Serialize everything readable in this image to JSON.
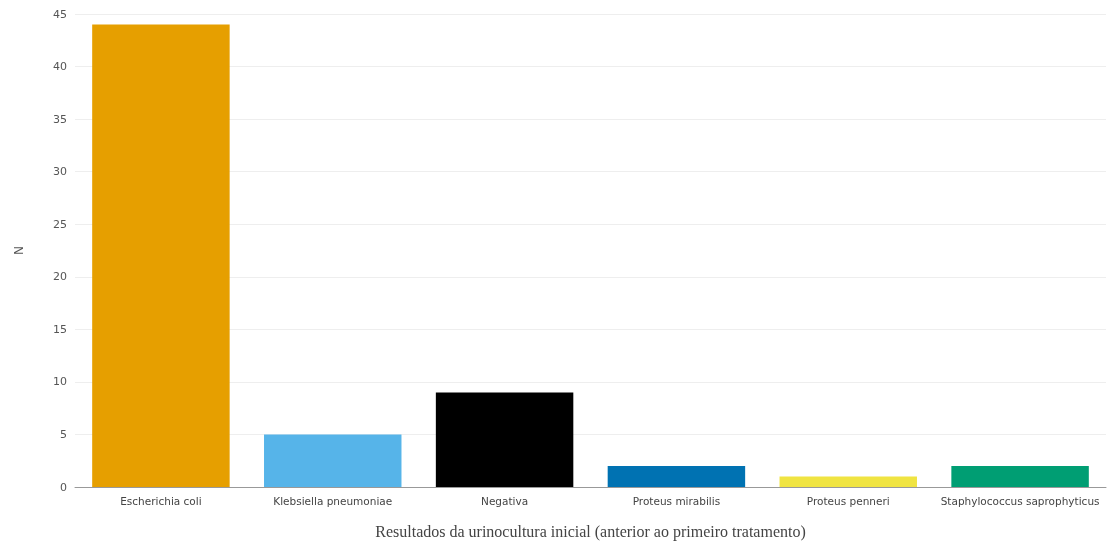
{
  "chart_data": {
    "type": "bar",
    "xlabel": "Resultados da urinocultura inicial (anterior ao primeiro tratamento)",
    "ylabel": "N",
    "categories": [
      "Escherichia coli",
      "Klebsiella pneumoniae",
      "Negativa",
      "Proteus mirabilis",
      "Proteus penneri",
      "Staphylococcus saprophyticus"
    ],
    "values": [
      44,
      5,
      9,
      2,
      1,
      2
    ],
    "colors": [
      "#e69f00",
      "#56b4e9",
      "#000000",
      "#0072b2",
      "#f0e442",
      "#009e73"
    ],
    "ylim": [
      0,
      45
    ],
    "yticks": [
      0,
      5,
      10,
      15,
      20,
      25,
      30,
      35,
      40,
      45
    ],
    "grid": "y"
  }
}
